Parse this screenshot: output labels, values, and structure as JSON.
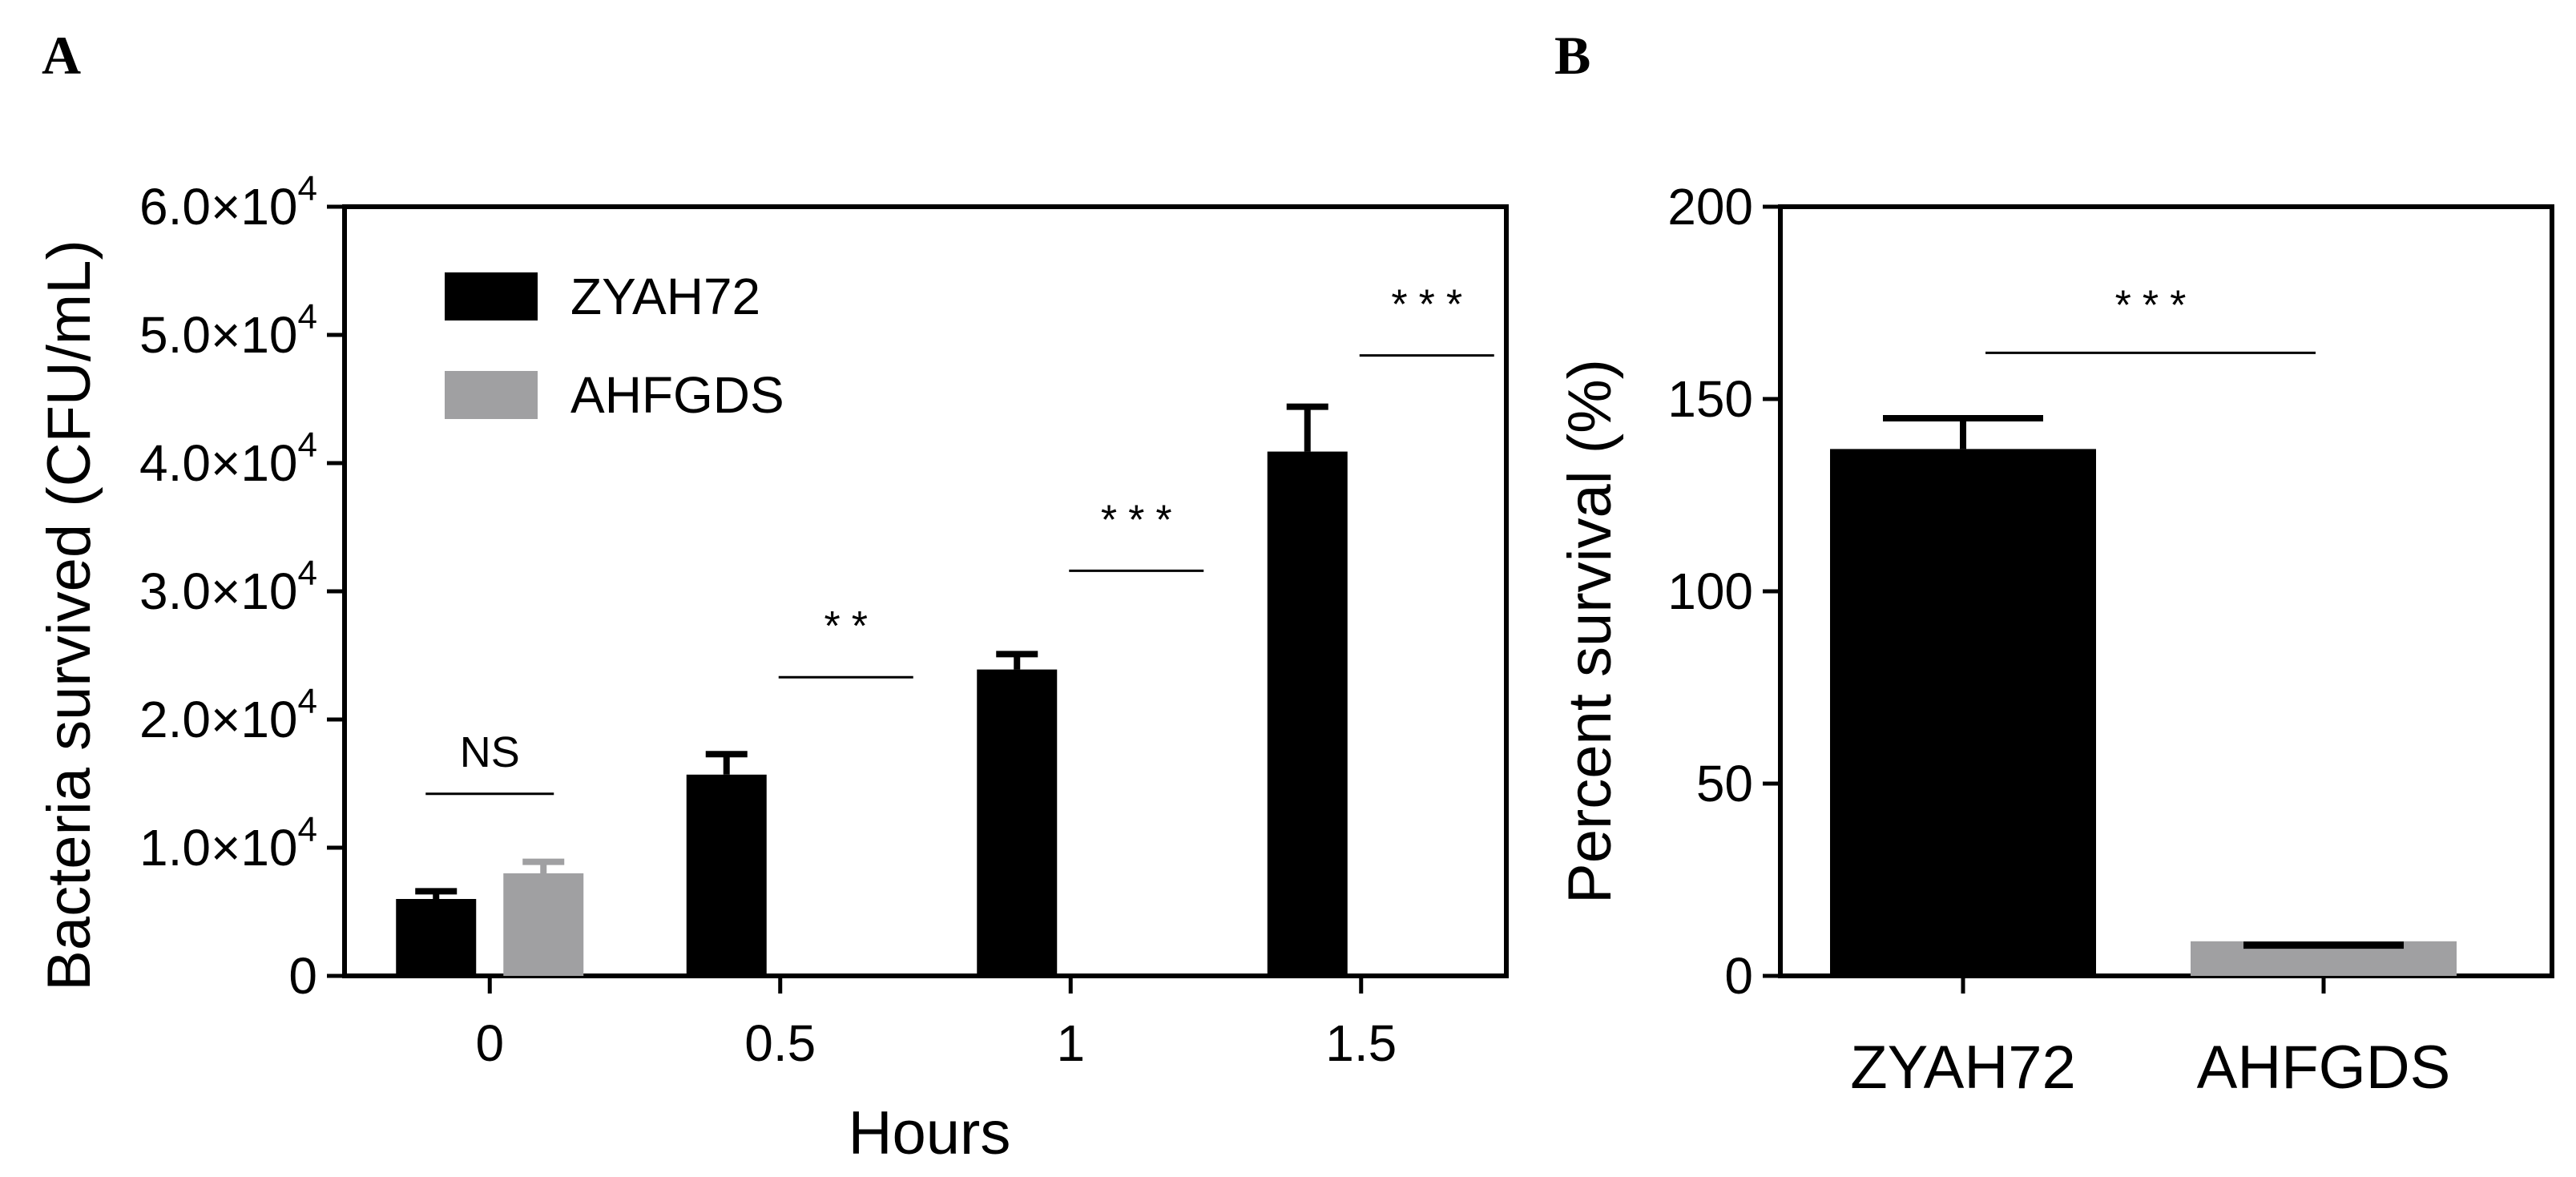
{
  "panels": {
    "a_label": "A",
    "b_label": "B"
  },
  "chart_data": [
    {
      "type": "bar",
      "panel": "A",
      "title": "",
      "xlabel": "Hours",
      "ylabel": "Bacteria survived (CFU/mL)",
      "categories": [
        "0",
        "0.5",
        "1",
        "1.5"
      ],
      "series": [
        {
          "name": "ZYAH72",
          "color": "#000000",
          "values": [
            6000,
            15700,
            23900,
            40900
          ],
          "errors": [
            600,
            1600,
            1200,
            3500
          ]
        },
        {
          "name": "AHFGDS",
          "color": "#a0a0a2",
          "values": [
            8000,
            0,
            0,
            0
          ],
          "errors": [
            900,
            0,
            0,
            0
          ]
        }
      ],
      "ylim": [
        0,
        60000
      ],
      "yticks": [
        {
          "value": 0,
          "mantissa": "0",
          "exp": ""
        },
        {
          "value": 10000,
          "mantissa": "1.0×10",
          "exp": "4"
        },
        {
          "value": 20000,
          "mantissa": "2.0×10",
          "exp": "4"
        },
        {
          "value": 30000,
          "mantissa": "3.0×10",
          "exp": "4"
        },
        {
          "value": 40000,
          "mantissa": "4.0×10",
          "exp": "4"
        },
        {
          "value": 50000,
          "mantissa": "5.0×10",
          "exp": "4"
        },
        {
          "value": 60000,
          "mantissa": "6.0×10",
          "exp": "4"
        }
      ],
      "legend": {
        "position": "top-left",
        "entries": [
          "ZYAH72",
          "AHFGDS"
        ]
      },
      "significance": [
        {
          "category": "0",
          "label": "NS",
          "line_y": 14200
        },
        {
          "category": "0.5",
          "label": "**",
          "line_y": 23300
        },
        {
          "category": "1",
          "label": "***",
          "line_y": 31600
        },
        {
          "category": "1.5",
          "label": "***",
          "line_y": 48400
        }
      ],
      "grid": false
    },
    {
      "type": "bar",
      "panel": "B",
      "title": "",
      "xlabel": "",
      "ylabel": "Percent survival (%)",
      "categories": [
        "ZYAH72",
        "AHFGDS"
      ],
      "values": [
        137,
        9
      ],
      "errors": [
        8,
        1
      ],
      "colors": [
        "#000000",
        "#a0a0a2"
      ],
      "ylim": [
        0,
        200
      ],
      "yticks": [
        0,
        50,
        100,
        150,
        200
      ],
      "significance": [
        {
          "from": "ZYAH72",
          "to": "AHFGDS",
          "label": "***",
          "line_y": 162
        }
      ],
      "grid": false
    }
  ]
}
